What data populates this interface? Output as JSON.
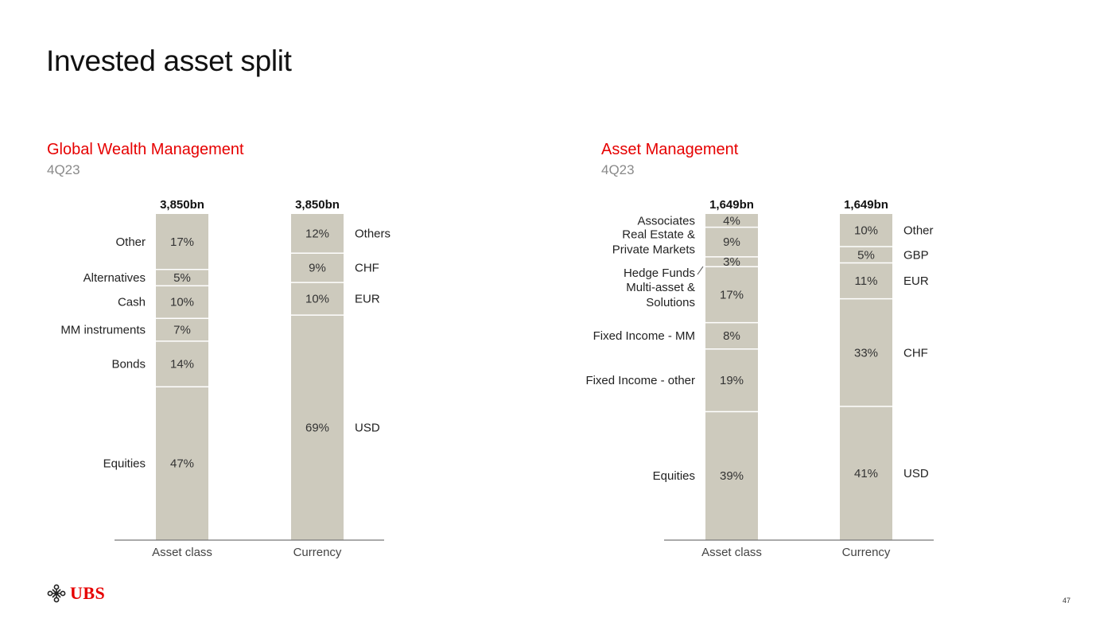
{
  "page": {
    "title": "Invested asset split",
    "page_number": "47",
    "logo_text": "UBS",
    "accent_color": "#e60000",
    "bar_color": "#cdcabd"
  },
  "sections": [
    {
      "title": "Global Wealth Management",
      "subtitle": "4Q23"
    },
    {
      "title": "Asset Management",
      "subtitle": "4Q23"
    }
  ],
  "chart_data": [
    {
      "type": "bar",
      "stacked": true,
      "title": "Global Wealth Management",
      "subtitle": "4Q23",
      "categories": [
        "Asset class",
        "Currency"
      ],
      "totals": [
        "3,850bn",
        "3,850bn"
      ],
      "bars": [
        {
          "category": "Asset class",
          "labels_side": "left",
          "segments": [
            {
              "name": "Other",
              "value": 17,
              "label": "17%"
            },
            {
              "name": "Alternatives",
              "value": 5,
              "label": "5%"
            },
            {
              "name": "Cash",
              "value": 10,
              "label": "10%"
            },
            {
              "name": "MM instruments",
              "value": 7,
              "label": "7%"
            },
            {
              "name": "Bonds",
              "value": 14,
              "label": "14%"
            },
            {
              "name": "Equities",
              "value": 47,
              "label": "47%"
            }
          ]
        },
        {
          "category": "Currency",
          "labels_side": "right",
          "segments": [
            {
              "name": "Others",
              "value": 12,
              "label": "12%"
            },
            {
              "name": "CHF",
              "value": 9,
              "label": "9%"
            },
            {
              "name": "EUR",
              "value": 10,
              "label": "10%"
            },
            {
              "name": "USD",
              "value": 69,
              "label": "69%"
            }
          ]
        }
      ]
    },
    {
      "type": "bar",
      "stacked": true,
      "title": "Asset Management",
      "subtitle": "4Q23",
      "categories": [
        "Asset class",
        "Currency"
      ],
      "totals": [
        "1,649bn",
        "1,649bn"
      ],
      "bars": [
        {
          "category": "Asset class",
          "labels_side": "left",
          "segments": [
            {
              "name": "Associates",
              "value": 4,
              "label": "4%"
            },
            {
              "name": "Real Estate & Private Markets",
              "value": 9,
              "label": "9%"
            },
            {
              "name": "Hedge Funds",
              "value": 3,
              "label": "3%"
            },
            {
              "name": "Multi-asset & Solutions",
              "value": 17,
              "label": "17%"
            },
            {
              "name": "Fixed Income - MM",
              "value": 8,
              "label": "8%"
            },
            {
              "name": "Fixed Income - other",
              "value": 19,
              "label": "19%"
            },
            {
              "name": "Equities",
              "value": 39,
              "label": "39%"
            }
          ]
        },
        {
          "category": "Currency",
          "labels_side": "right",
          "segments": [
            {
              "name": "Other",
              "value": 10,
              "label": "10%"
            },
            {
              "name": "GBP",
              "value": 5,
              "label": "5%"
            },
            {
              "name": "EUR",
              "value": 11,
              "label": "11%"
            },
            {
              "name": "CHF",
              "value": 33,
              "label": "33%"
            },
            {
              "name": "USD",
              "value": 41,
              "label": "41%"
            }
          ]
        }
      ]
    }
  ]
}
